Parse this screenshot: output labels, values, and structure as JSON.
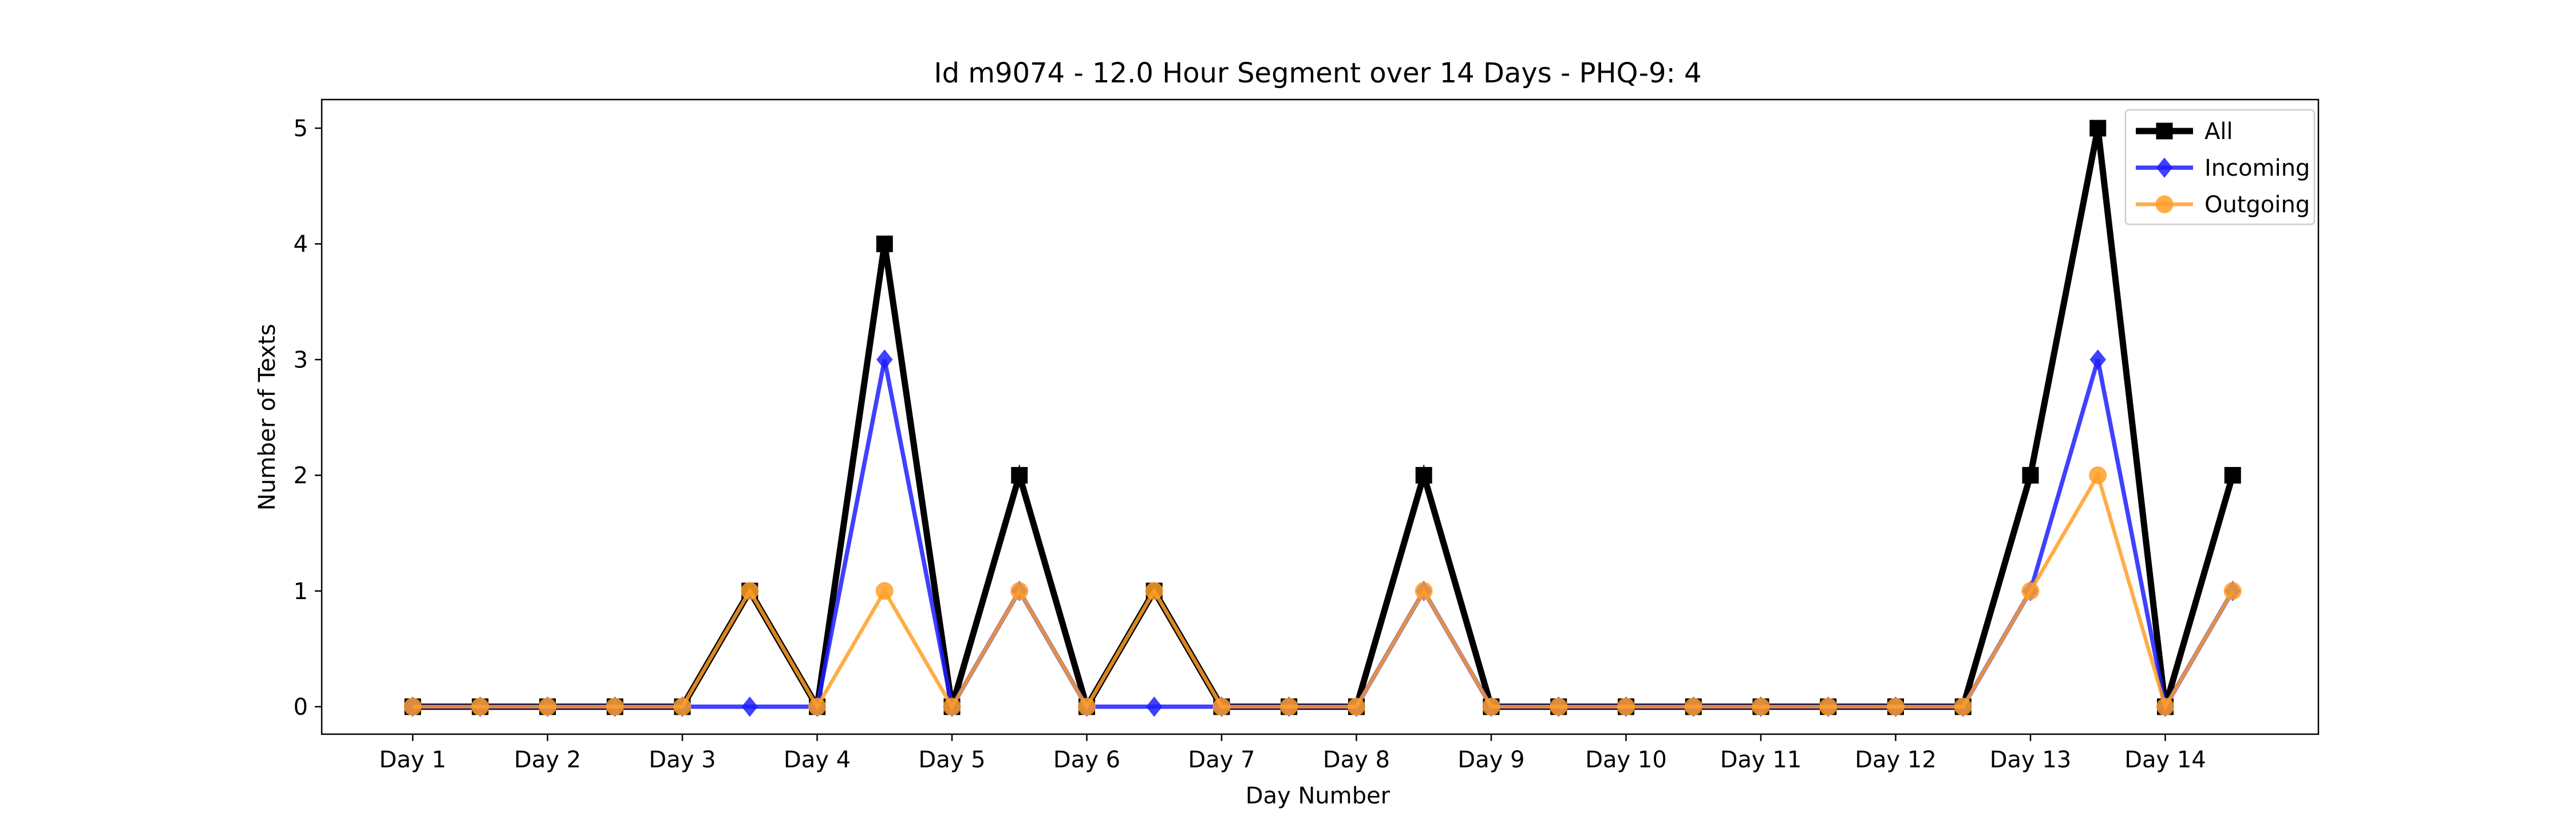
{
  "chart_data": {
    "type": "line",
    "title": "Id m9074 - 12.0 Hour Segment over 14 Days - PHQ-9: 4",
    "xlabel": "Day Number",
    "ylabel": "Number of Texts",
    "x_tick_labels": [
      "Day 1",
      "Day 2",
      "Day 3",
      "Day 4",
      "Day 5",
      "Day 6",
      "Day 7",
      "Day 8",
      "Day 9",
      "Day 10",
      "Day 11",
      "Day 12",
      "Day 13",
      "Day 14"
    ],
    "y_ticks": [
      0,
      1,
      2,
      3,
      4,
      5
    ],
    "x_count": 28,
    "ylim": [
      -0.25,
      5.25
    ],
    "legend_position": "top-right",
    "grid": false,
    "series": [
      {
        "name": "All",
        "color": "#000000",
        "marker": "square",
        "values": [
          0,
          0,
          0,
          0,
          0,
          1,
          0,
          4,
          0,
          2,
          0,
          1,
          0,
          0,
          0,
          2,
          0,
          0,
          0,
          0,
          0,
          0,
          0,
          0,
          2,
          5,
          0,
          2
        ]
      },
      {
        "name": "Incoming",
        "color": "#1f1fff",
        "marker": "diamond",
        "values": [
          0,
          0,
          0,
          0,
          0,
          0,
          0,
          3,
          0,
          1,
          0,
          0,
          0,
          0,
          0,
          1,
          0,
          0,
          0,
          0,
          0,
          0,
          0,
          0,
          1,
          3,
          0,
          1
        ]
      },
      {
        "name": "Outgoing",
        "color": "#ff9f27",
        "marker": "circle",
        "values": [
          0,
          0,
          0,
          0,
          0,
          1,
          0,
          1,
          0,
          1,
          0,
          1,
          0,
          0,
          0,
          1,
          0,
          0,
          0,
          0,
          0,
          0,
          0,
          0,
          1,
          2,
          0,
          1
        ]
      }
    ]
  }
}
